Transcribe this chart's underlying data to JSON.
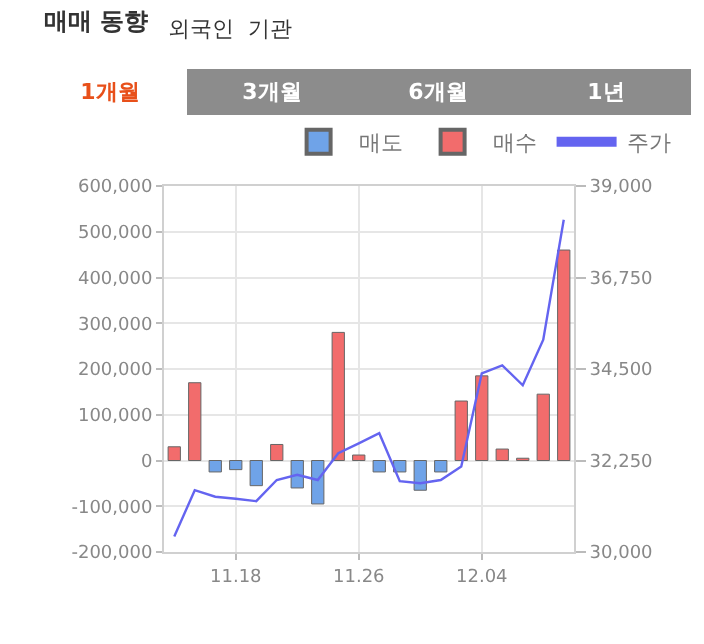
{
  "chart_data": {
    "type": "bar",
    "title": "매매 동향",
    "annotations": [
      "외국인",
      "기관",
      "1개월",
      "3개월",
      "6개월",
      "1년"
    ],
    "categories": [
      null,
      null,
      null,
      "11.18",
      null,
      null,
      null,
      null,
      null,
      "11.26",
      null,
      null,
      null,
      null,
      null,
      "12.04",
      null,
      null,
      null,
      null
    ],
    "series": [
      {
        "name": "매도",
        "color": "#6fa3e8",
        "values": [
          null,
          null,
          -25000,
          -20000,
          -55000,
          null,
          -60000,
          -95000,
          null,
          null,
          -25000,
          -25000,
          -65000,
          -25000,
          null,
          null,
          null,
          null,
          null,
          null
        ]
      },
      {
        "name": "매수",
        "color": "#f26c6c",
        "values": [
          30000,
          170000,
          null,
          null,
          null,
          35000,
          null,
          null,
          280000,
          12000,
          null,
          null,
          null,
          null,
          130000,
          185000,
          25000,
          5000,
          145000,
          460000
        ]
      },
      {
        "name": "주가",
        "type": "line",
        "axis": "y2",
        "color": "#6464f0",
        "values": [
          30380,
          31520,
          31360,
          31310,
          31250,
          31770,
          31900,
          31770,
          32430,
          32670,
          32920,
          31740,
          31690,
          31770,
          32100,
          34390,
          34590,
          34100,
          35220,
          38170
        ]
      }
    ],
    "ylim": [
      -200000,
      600000
    ],
    "yticks": [
      {
        "value": -200000,
        "label": "-200,000"
      },
      {
        "value": -100000,
        "label": "-100,000"
      },
      {
        "value": 0,
        "label": "0"
      },
      {
        "value": 100000,
        "label": "100,000"
      },
      {
        "value": 200000,
        "label": "200,000"
      },
      {
        "value": 300000,
        "label": "300,000"
      },
      {
        "value": 400000,
        "label": "400,000"
      },
      {
        "value": 500000,
        "label": "500,000"
      },
      {
        "value": 600000,
        "label": "600,000"
      }
    ],
    "y2lim": [
      30000,
      39000
    ],
    "y2ticks": [
      {
        "value": 30000,
        "label": "30,000"
      },
      {
        "value": 32250,
        "label": "32,250"
      },
      {
        "value": 34500,
        "label": "34,500"
      },
      {
        "value": 36750,
        "label": "36,750"
      },
      {
        "value": 39000,
        "label": "39,000"
      }
    ],
    "grid": true,
    "legend": "top right",
    "marker": "none",
    "line_style": "solid"
  }
}
